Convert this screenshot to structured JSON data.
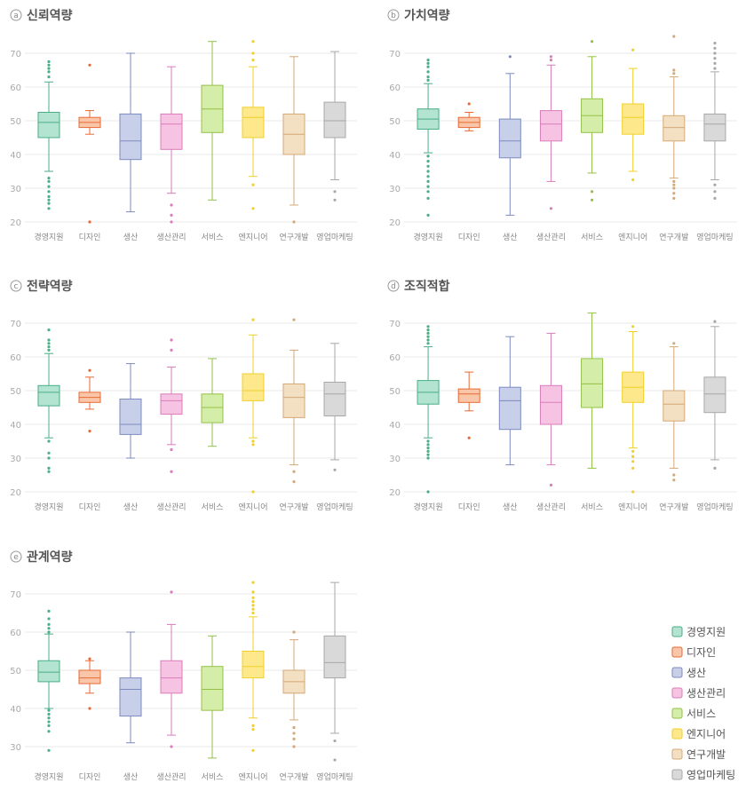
{
  "colors": {
    "fills": [
      "#b3e3d1",
      "#f9c6a9",
      "#c8cfe8",
      "#f6c3e3",
      "#d4eeaa",
      "#fde98b",
      "#f3dfc1",
      "#d9d9d9"
    ],
    "strokes": [
      "#4aae87",
      "#e76a35",
      "#7d8bbf",
      "#d97dba",
      "#94c146",
      "#f1cf2b",
      "#d4a877",
      "#a8a8a8"
    ],
    "grid": "#e8e8e8",
    "title": "#555555"
  },
  "legend": {
    "placement": "bottom-right",
    "items": [
      "경영지원",
      "디자인",
      "생산",
      "생산관리",
      "서비스",
      "엔지니어",
      "연구개발",
      "영업마케팅"
    ]
  },
  "chart_data": [
    {
      "type": "boxplot",
      "badge": "a",
      "title": "신뢰역량",
      "categories": [
        "경영지원",
        "디자인",
        "생산",
        "생산관리",
        "서비스",
        "엔지니어",
        "연구개발",
        "영업마케팅"
      ],
      "yticks": [
        20,
        30,
        40,
        50,
        60,
        70
      ],
      "ylim": [
        19,
        74
      ],
      "boxes": [
        {
          "min": 35,
          "q1": 45,
          "median": 49.5,
          "q3": 52.5,
          "max": 61.5,
          "outliers": [
            24,
            25.5,
            26.5,
            27.5,
            29,
            30.5,
            32,
            33,
            63,
            64.5,
            65.5,
            66.5,
            67.5
          ]
        },
        {
          "min": 46,
          "q1": 48,
          "median": 49.5,
          "q3": 51,
          "max": 53,
          "outliers": [
            20,
            66.5
          ]
        },
        {
          "min": 23,
          "q1": 38.5,
          "median": 44,
          "q3": 52,
          "max": 70,
          "outliers": []
        },
        {
          "min": 28.5,
          "q1": 41.5,
          "median": 49,
          "q3": 52,
          "max": 66,
          "outliers": [
            20,
            22,
            25
          ]
        },
        {
          "min": 26.5,
          "q1": 46.5,
          "median": 53.5,
          "q3": 60.5,
          "max": 73.5,
          "outliers": []
        },
        {
          "min": 33.5,
          "q1": 45,
          "median": 51,
          "q3": 54,
          "max": 66,
          "outliers": [
            24,
            31,
            68,
            70,
            73.5
          ]
        },
        {
          "min": 25,
          "q1": 40,
          "median": 46,
          "q3": 52,
          "max": 69,
          "outliers": [
            20
          ]
        },
        {
          "min": 32.5,
          "q1": 45,
          "median": 50,
          "q3": 55.5,
          "max": 70.5,
          "outliers": [
            26.5,
            29
          ]
        }
      ]
    },
    {
      "type": "boxplot",
      "badge": "b",
      "title": "가치역량",
      "categories": [
        "경영지원",
        "디자인",
        "생산",
        "생산관리",
        "서비스",
        "엔지니어",
        "연구개발",
        "영업마케팅"
      ],
      "yticks": [
        20,
        30,
        40,
        50,
        60,
        70
      ],
      "ylim": [
        19,
        76
      ],
      "boxes": [
        {
          "min": 40.5,
          "q1": 47.5,
          "median": 50.5,
          "q3": 53.5,
          "max": 61,
          "outliers": [
            22,
            27,
            29,
            30.5,
            32,
            33.5,
            35,
            36.5,
            38,
            39.5,
            62,
            63,
            64.5,
            66,
            67,
            68
          ]
        },
        {
          "min": 47,
          "q1": 48,
          "median": 49.5,
          "q3": 51,
          "max": 52.5,
          "outliers": [
            55
          ]
        },
        {
          "min": 22,
          "q1": 39,
          "median": 44,
          "q3": 50.5,
          "max": 64,
          "outliers": [
            69
          ]
        },
        {
          "min": 32,
          "q1": 44,
          "median": 49,
          "q3": 53,
          "max": 66.5,
          "outliers": [
            24,
            68,
            69
          ]
        },
        {
          "min": 34.5,
          "q1": 46.5,
          "median": 51.5,
          "q3": 56.5,
          "max": 69,
          "outliers": [
            26.5,
            29,
            73.5
          ]
        },
        {
          "min": 35,
          "q1": 46,
          "median": 51,
          "q3": 55,
          "max": 65.5,
          "outliers": [
            32.5,
            71
          ]
        },
        {
          "min": 33,
          "q1": 44,
          "median": 48,
          "q3": 51.5,
          "max": 63,
          "outliers": [
            27,
            28.5,
            30,
            31,
            32,
            64,
            65,
            75
          ]
        },
        {
          "min": 32.5,
          "q1": 44,
          "median": 49,
          "q3": 52,
          "max": 64.5,
          "outliers": [
            27,
            29,
            31,
            65.5,
            67,
            68.5,
            70,
            71.5,
            73
          ]
        }
      ]
    },
    {
      "type": "boxplot",
      "badge": "c",
      "title": "전략역량",
      "categories": [
        "경영지원",
        "디자인",
        "생산",
        "생산관리",
        "서비스",
        "엔지니어",
        "연구개발",
        "영업마케팅"
      ],
      "yticks": [
        20,
        30,
        40,
        50,
        60,
        70
      ],
      "ylim": [
        19,
        73
      ],
      "boxes": [
        {
          "min": 36,
          "q1": 45.5,
          "median": 49.5,
          "q3": 51.5,
          "max": 61,
          "outliers": [
            26,
            27,
            30,
            31.5,
            35,
            62,
            63,
            64,
            65,
            68
          ]
        },
        {
          "min": 44.5,
          "q1": 46.5,
          "median": 48,
          "q3": 49.5,
          "max": 54,
          "outliers": [
            38,
            56
          ]
        },
        {
          "min": 30,
          "q1": 37,
          "median": 40,
          "q3": 47.5,
          "max": 58,
          "outliers": []
        },
        {
          "min": 34,
          "q1": 43,
          "median": 47,
          "q3": 49,
          "max": 57,
          "outliers": [
            26,
            32.5,
            62,
            65
          ]
        },
        {
          "min": 33.5,
          "q1": 40.5,
          "median": 45,
          "q3": 49,
          "max": 59.5,
          "outliers": []
        },
        {
          "min": 36,
          "q1": 47,
          "median": 50,
          "q3": 55,
          "max": 66.5,
          "outliers": [
            20,
            34,
            35,
            71
          ]
        },
        {
          "min": 28,
          "q1": 42,
          "median": 48,
          "q3": 52,
          "max": 62,
          "outliers": [
            23,
            26,
            71
          ]
        },
        {
          "min": 29.5,
          "q1": 42.5,
          "median": 49,
          "q3": 52.5,
          "max": 64,
          "outliers": [
            26.5
          ]
        }
      ]
    },
    {
      "type": "boxplot",
      "badge": "d",
      "title": "조직적합",
      "categories": [
        "경영지원",
        "디자인",
        "생산",
        "생산관리",
        "서비스",
        "엔지니어",
        "연구개발",
        "영업마케팅"
      ],
      "yticks": [
        20,
        30,
        40,
        50,
        60,
        70
      ],
      "ylim": [
        19,
        74
      ],
      "boxes": [
        {
          "min": 36,
          "q1": 46,
          "median": 49.5,
          "q3": 53,
          "max": 63,
          "outliers": [
            20,
            30,
            31,
            32,
            33,
            34,
            35,
            64,
            65,
            66,
            67,
            68,
            69
          ]
        },
        {
          "min": 44,
          "q1": 46.5,
          "median": 49,
          "q3": 50.5,
          "max": 55.5,
          "outliers": [
            36
          ]
        },
        {
          "min": 28,
          "q1": 38.5,
          "median": 47,
          "q3": 51,
          "max": 66,
          "outliers": []
        },
        {
          "min": 28,
          "q1": 40,
          "median": 46.5,
          "q3": 51.5,
          "max": 67,
          "outliers": [
            22
          ]
        },
        {
          "min": 27,
          "q1": 45,
          "median": 52,
          "q3": 59.5,
          "max": 73,
          "outliers": []
        },
        {
          "min": 33,
          "q1": 46.5,
          "median": 51,
          "q3": 55.5,
          "max": 67.5,
          "outliers": [
            20,
            27,
            29,
            30.5,
            32,
            69
          ]
        },
        {
          "min": 27,
          "q1": 41,
          "median": 46,
          "q3": 50,
          "max": 63,
          "outliers": [
            23.5,
            25,
            64
          ]
        },
        {
          "min": 29.5,
          "q1": 43.5,
          "median": 49,
          "q3": 54,
          "max": 69,
          "outliers": [
            27,
            70.5
          ]
        }
      ]
    },
    {
      "type": "boxplot",
      "badge": "e",
      "title": "관계역량",
      "categories": [
        "경영지원",
        "디자인",
        "생산",
        "생산관리",
        "서비스",
        "엔지니어",
        "연구개발",
        "영업마케팅"
      ],
      "yticks": [
        30,
        40,
        50,
        60,
        70
      ],
      "ylim": [
        26,
        74
      ],
      "boxes": [
        {
          "min": 40,
          "q1": 47,
          "median": 49.5,
          "q3": 52.5,
          "max": 59.5,
          "outliers": [
            29,
            34,
            35.5,
            36.5,
            37.5,
            38.5,
            39.5,
            60,
            61,
            62,
            63.5,
            65.5
          ]
        },
        {
          "min": 44,
          "q1": 46.5,
          "median": 48,
          "q3": 50,
          "max": 52.5,
          "outliers": [
            40,
            53
          ]
        },
        {
          "min": 31,
          "q1": 38,
          "median": 45,
          "q3": 48,
          "max": 60,
          "outliers": []
        },
        {
          "min": 33,
          "q1": 44,
          "median": 48,
          "q3": 52.5,
          "max": 62,
          "outliers": [
            30,
            70.5
          ]
        },
        {
          "min": 27,
          "q1": 39.5,
          "median": 45,
          "q3": 51,
          "max": 59,
          "outliers": []
        },
        {
          "min": 37.5,
          "q1": 48,
          "median": 51,
          "q3": 55,
          "max": 64,
          "outliers": [
            29,
            34.5,
            35.5,
            65,
            66,
            67,
            68,
            69,
            70.5,
            73
          ]
        },
        {
          "min": 37,
          "q1": 44,
          "median": 47,
          "q3": 50,
          "max": 58,
          "outliers": [
            30,
            32,
            33.5,
            35,
            60
          ]
        },
        {
          "min": 33.5,
          "q1": 48,
          "median": 52,
          "q3": 59,
          "max": 73,
          "outliers": [
            26.5,
            31.5
          ]
        }
      ]
    }
  ]
}
